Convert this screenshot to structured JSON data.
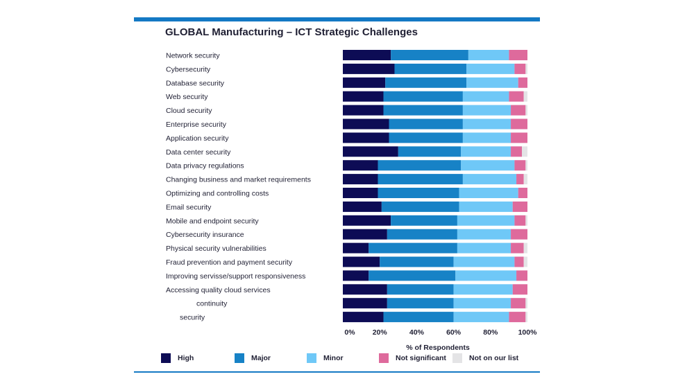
{
  "colors": {
    "High": "#0d0c55",
    "Major": "#1782c6",
    "Minor": "#6fc8f7",
    "Not significant": "#de6a9c",
    "Not on our list": "#e4e4e6"
  },
  "chart_data": {
    "type": "bar",
    "orientation": "horizontal",
    "stacked": true,
    "title": "GLOBAL Manufacturing – ICT Strategic Challenges",
    "xlabel": "% of Respondents",
    "ylabel": "",
    "xlim": [
      0,
      100
    ],
    "xticks": [
      "0%",
      "20%",
      "40%",
      "60%",
      "80%",
      "100%"
    ],
    "legend_position": "bottom",
    "grid": false,
    "categories": [
      "Network security",
      "Cybersecurity",
      "Database security",
      "Web security",
      "Cloud security",
      "Enterprise security",
      "Application security",
      "Data center security",
      "Data privacy regulations",
      "Changing business and market requirements",
      "Optimizing and controlling costs",
      "Email security",
      "Mobile and endpoint security",
      "Cybersecurity insurance",
      "Physical security vulnerabilities",
      "Fraud prevention and payment security",
      "Improving servisse/support responsiveness",
      "Accessing quality cloud services",
      "continuity",
      "security"
    ],
    "series": [
      {
        "name": "High",
        "values": [
          26,
          28,
          23,
          22,
          22,
          25,
          25,
          30,
          19,
          19,
          19,
          21,
          26,
          24,
          14,
          20,
          14,
          24,
          24,
          22
        ]
      },
      {
        "name": "Major",
        "values": [
          42,
          39,
          44,
          43,
          43,
          40,
          40,
          34,
          45,
          46,
          44,
          42,
          36,
          38,
          48,
          40,
          47,
          36,
          36,
          38
        ]
      },
      {
        "name": "Minor",
        "values": [
          22,
          26,
          28,
          25,
          26,
          26,
          26,
          27,
          29,
          29,
          32,
          29,
          31,
          29,
          29,
          33,
          33,
          32,
          31,
          30
        ]
      },
      {
        "name": "Not significant",
        "values": [
          10,
          6,
          5,
          8,
          8,
          9,
          9,
          6,
          6,
          4,
          5,
          8,
          6,
          9,
          7,
          5,
          6,
          8,
          8,
          9
        ]
      },
      {
        "name": "Not on our list",
        "values": [
          0,
          1,
          0,
          2,
          1,
          0,
          0,
          3,
          1,
          2,
          0,
          0,
          1,
          0,
          2,
          2,
          0,
          0,
          1,
          1
        ]
      }
    ]
  }
}
